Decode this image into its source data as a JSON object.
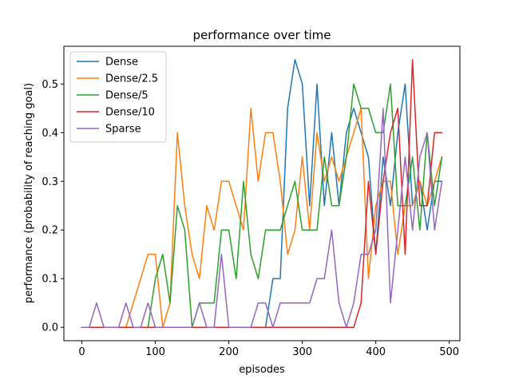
{
  "chart_data": {
    "type": "line",
    "title": "performance over time",
    "xlabel": "episodes",
    "ylabel": "performance (probability of reaching goal)",
    "xlim": [
      -24.5,
      514.5
    ],
    "ylim": [
      -0.0275,
      0.5775
    ],
    "xticks": [
      0,
      100,
      200,
      300,
      400,
      500
    ],
    "yticks": [
      0.0,
      0.1,
      0.2,
      0.3,
      0.4,
      0.5
    ],
    "xtick_labels": [
      "0",
      "100",
      "200",
      "300",
      "400",
      "500"
    ],
    "ytick_labels": [
      "0.0",
      "0.1",
      "0.2",
      "0.3",
      "0.4",
      "0.5"
    ],
    "grid": false,
    "legend_position": "upper-left",
    "x": [
      0,
      10,
      20,
      30,
      40,
      50,
      60,
      70,
      80,
      90,
      100,
      110,
      120,
      130,
      140,
      150,
      160,
      170,
      180,
      190,
      200,
      210,
      220,
      230,
      240,
      250,
      260,
      270,
      280,
      290,
      300,
      310,
      320,
      330,
      340,
      350,
      360,
      370,
      380,
      390,
      400,
      410,
      420,
      430,
      440,
      450,
      460,
      470,
      480,
      490
    ],
    "series": [
      {
        "name": "Dense",
        "color": "#1f77b4",
        "values": [
          0,
          0,
          0,
          0,
          0,
          0,
          0,
          0,
          0,
          0,
          0,
          0,
          0,
          0,
          0,
          0,
          0,
          0,
          0,
          0,
          0,
          0,
          0,
          0,
          0,
          0,
          0.1,
          0.1,
          0.45,
          0.55,
          0.5,
          0.25,
          0.5,
          0.25,
          0.4,
          0.25,
          0.4,
          0.45,
          0.4,
          0.35,
          0.15,
          0.35,
          0.25,
          0.4,
          0.5,
          0.25,
          0.3,
          0.2,
          0.3,
          0.3
        ]
      },
      {
        "name": "Dense/2.5",
        "color": "#ff7f0e",
        "values": [
          0,
          0,
          0,
          0,
          0,
          0,
          0,
          0.05,
          0.1,
          0.15,
          0.15,
          0,
          0.05,
          0.4,
          0.25,
          0.15,
          0.1,
          0.25,
          0.2,
          0.3,
          0.3,
          0.25,
          0.2,
          0.45,
          0.3,
          0.4,
          0.4,
          0.3,
          0.15,
          0.2,
          0.35,
          0.2,
          0.4,
          0.3,
          0.35,
          0.3,
          0.35,
          0.4,
          0.45,
          0.1,
          0.25,
          0.3,
          0.3,
          0.15,
          0.25,
          0.25,
          0.3,
          0.25,
          0.3,
          0.35
        ]
      },
      {
        "name": "Dense/5",
        "color": "#2ca02c",
        "values": [
          0,
          0,
          0,
          0,
          0,
          0,
          0,
          0,
          0,
          0,
          0.1,
          0.15,
          0.05,
          0.25,
          0.2,
          0,
          0.05,
          0.05,
          0.05,
          0.2,
          0.2,
          0.1,
          0.3,
          0.15,
          0.1,
          0.2,
          0.2,
          0.2,
          0.25,
          0.3,
          0.2,
          0.2,
          0.2,
          0.35,
          0.25,
          0.25,
          0.35,
          0.5,
          0.45,
          0.45,
          0.4,
          0.4,
          0.5,
          0.25,
          0.25,
          0.35,
          0.2,
          0.4,
          0.25,
          0.35
        ]
      },
      {
        "name": "Dense/10",
        "color": "#d62728",
        "values": [
          0,
          0,
          0,
          0,
          0,
          0,
          0,
          0,
          0,
          0,
          0,
          0,
          0,
          0,
          0,
          0,
          0,
          0,
          0,
          0,
          0,
          0,
          0,
          0,
          0,
          0,
          0,
          0,
          0,
          0,
          0,
          0,
          0,
          0,
          0,
          0,
          0,
          0,
          0.05,
          0.3,
          0.15,
          0.3,
          0.4,
          0.45,
          0.15,
          0.55,
          0.25,
          0.25,
          0.4,
          0.4
        ]
      },
      {
        "name": "Sparse",
        "color": "#9467bd",
        "values": [
          0,
          0,
          0.05,
          0,
          0,
          0,
          0.05,
          0,
          0,
          0.05,
          0,
          0,
          0,
          0,
          0,
          0,
          0.05,
          0,
          0,
          0.15,
          0,
          0,
          0,
          0,
          0.05,
          0.05,
          0,
          0.05,
          0.05,
          0.05,
          0.05,
          0.05,
          0.1,
          0.1,
          0.2,
          0.05,
          0,
          0.05,
          0.15,
          0.15,
          0.2,
          0.45,
          0.05,
          0.2,
          0.35,
          0.2,
          0.35,
          0.4,
          0.2,
          0.3
        ]
      }
    ]
  }
}
